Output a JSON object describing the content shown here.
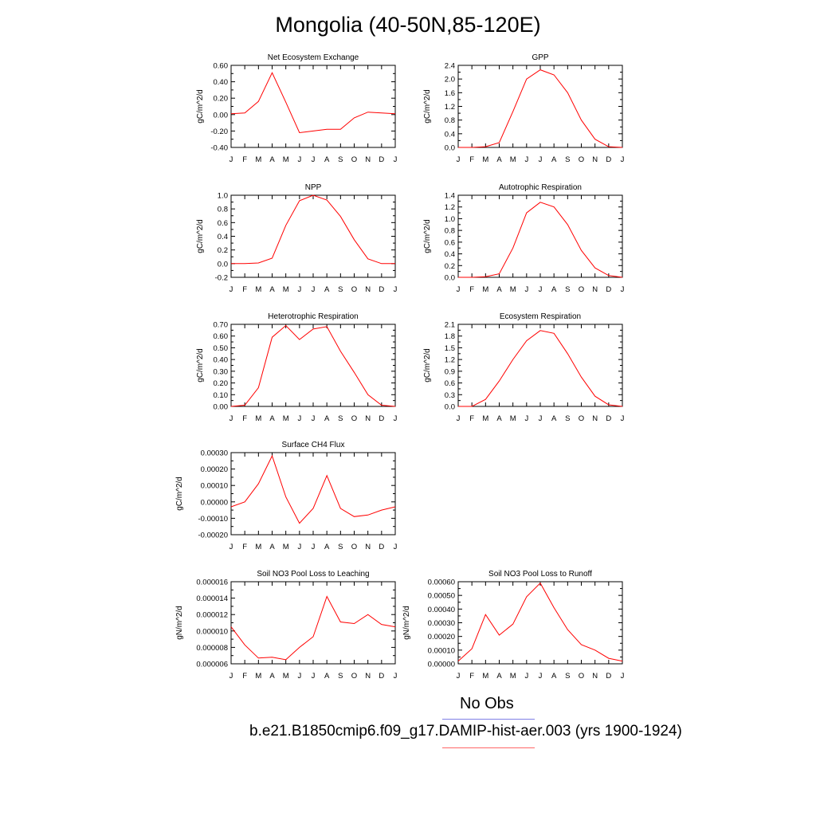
{
  "page": {
    "title": "Mongolia (40-50N,85-120E)",
    "legend": {
      "obs_label": "No Obs",
      "obs_color": "#7f7fe6",
      "model_label": "b.e21.B1850cmip6.f09_g17.DAMIP-hist-aer.003 (yrs 1900-1924)",
      "model_color": "#ff0000"
    }
  },
  "chart_data": [
    {
      "id": "nee",
      "type": "line",
      "title": "Net Ecosystem Exchange",
      "ylabel": "gC/m^2/d",
      "x": [
        "J",
        "F",
        "M",
        "A",
        "M",
        "J",
        "J",
        "A",
        "S",
        "O",
        "N",
        "D",
        "J"
      ],
      "yticks": [
        "0.60",
        "0.40",
        "0.20",
        "0.00",
        "-0.20",
        "-0.40"
      ],
      "ylim": [
        -0.4,
        0.6
      ],
      "series": [
        {
          "values": [
            0.01,
            0.02,
            0.16,
            0.51,
            0.15,
            -0.22,
            -0.2,
            -0.18,
            -0.18,
            -0.04,
            0.03,
            0.02,
            0.01
          ]
        }
      ]
    },
    {
      "id": "gpp",
      "type": "line",
      "title": "GPP",
      "ylabel": "gC/m^2/d",
      "x": [
        "J",
        "F",
        "M",
        "A",
        "M",
        "J",
        "J",
        "A",
        "S",
        "O",
        "N",
        "D",
        "J"
      ],
      "yticks": [
        "2.4",
        "2.0",
        "1.6",
        "1.2",
        "0.8",
        "0.4",
        "0.0"
      ],
      "ylim": [
        0,
        2.4
      ],
      "series": [
        {
          "values": [
            0.0,
            0.0,
            0.02,
            0.14,
            1.05,
            2.0,
            2.27,
            2.12,
            1.6,
            0.8,
            0.24,
            0.02,
            0.0
          ]
        }
      ]
    },
    {
      "id": "npp",
      "type": "line",
      "title": "NPP",
      "ylabel": "gC/m^2/d",
      "x": [
        "J",
        "F",
        "M",
        "A",
        "M",
        "J",
        "J",
        "A",
        "S",
        "O",
        "N",
        "D",
        "J"
      ],
      "yticks": [
        "1.0",
        "0.8",
        "0.6",
        "0.4",
        "0.2",
        "0.0",
        "-0.2"
      ],
      "ylim": [
        -0.2,
        1.0
      ],
      "series": [
        {
          "values": [
            0.0,
            0.0,
            0.01,
            0.08,
            0.56,
            0.92,
            1.0,
            0.93,
            0.69,
            0.35,
            0.07,
            0.0,
            0.0
          ]
        }
      ]
    },
    {
      "id": "ar",
      "type": "line",
      "title": "Autotrophic Respiration",
      "ylabel": "gC/m^2/d",
      "x": [
        "J",
        "F",
        "M",
        "A",
        "M",
        "J",
        "J",
        "A",
        "S",
        "O",
        "N",
        "D",
        "J"
      ],
      "yticks": [
        "1.4",
        "1.2",
        "1.0",
        "0.8",
        "0.6",
        "0.4",
        "0.2",
        "0.0"
      ],
      "ylim": [
        0,
        1.4
      ],
      "series": [
        {
          "values": [
            0.0,
            0.0,
            0.01,
            0.06,
            0.5,
            1.1,
            1.28,
            1.2,
            0.9,
            0.46,
            0.16,
            0.03,
            0.0
          ]
        }
      ]
    },
    {
      "id": "hr",
      "type": "line",
      "title": "Heterotrophic Respiration",
      "ylabel": "gC/m^2/d",
      "x": [
        "J",
        "F",
        "M",
        "A",
        "M",
        "J",
        "J",
        "A",
        "S",
        "O",
        "N",
        "D",
        "J"
      ],
      "yticks": [
        "0.70",
        "0.60",
        "0.50",
        "0.40",
        "0.30",
        "0.20",
        "0.10",
        "0.00"
      ],
      "ylim": [
        0,
        0.7
      ],
      "series": [
        {
          "values": [
            0.0,
            0.01,
            0.16,
            0.59,
            0.69,
            0.57,
            0.66,
            0.68,
            0.47,
            0.29,
            0.1,
            0.01,
            0.0
          ]
        }
      ]
    },
    {
      "id": "er",
      "type": "line",
      "title": "Ecosystem Respiration",
      "ylabel": "gC/m^2/d",
      "x": [
        "J",
        "F",
        "M",
        "A",
        "M",
        "J",
        "J",
        "A",
        "S",
        "O",
        "N",
        "D",
        "J"
      ],
      "yticks": [
        "2.1",
        "1.8",
        "1.5",
        "1.2",
        "0.9",
        "0.6",
        "0.3",
        "0.0"
      ],
      "ylim": [
        0,
        2.1
      ],
      "series": [
        {
          "values": [
            0.0,
            0.0,
            0.18,
            0.65,
            1.2,
            1.68,
            1.94,
            1.87,
            1.35,
            0.75,
            0.26,
            0.04,
            0.0
          ]
        }
      ]
    },
    {
      "id": "ch4",
      "type": "line",
      "title": "Surface CH4 Flux",
      "ylabel": "gC/m^2/d",
      "x": [
        "J",
        "F",
        "M",
        "A",
        "M",
        "J",
        "J",
        "A",
        "S",
        "O",
        "N",
        "D",
        "J"
      ],
      "yticks": [
        "0.00030",
        "0.00020",
        "0.00010",
        "0.00000",
        "-0.00010",
        "-0.00020"
      ],
      "ylim": [
        -0.0002,
        0.0003
      ],
      "series": [
        {
          "values": [
            -3e-05,
            0.0,
            0.00011,
            0.00028,
            3e-05,
            -0.00013,
            -4e-05,
            0.00016,
            -4e-05,
            -9e-05,
            -8e-05,
            -5e-05,
            -3e-05
          ]
        }
      ]
    },
    {
      "id": "leach",
      "type": "line",
      "title": "Soil NO3 Pool Loss to Leaching",
      "ylabel": "gN/m^2/d",
      "x": [
        "J",
        "F",
        "M",
        "A",
        "M",
        "J",
        "J",
        "A",
        "S",
        "O",
        "N",
        "D",
        "J"
      ],
      "yticks": [
        "0.000016",
        "0.000014",
        "0.000012",
        "0.000010",
        "0.000008",
        "0.000006"
      ],
      "ylim": [
        6e-06,
        1.6e-05
      ],
      "series": [
        {
          "values": [
            1.05e-05,
            8.3e-06,
            6.7e-06,
            6.8e-06,
            6.5e-06,
            8e-06,
            9.3e-06,
            1.42e-05,
            1.11e-05,
            1.09e-05,
            1.2e-05,
            1.08e-05,
            1.05e-05
          ]
        }
      ]
    },
    {
      "id": "runoff",
      "type": "line",
      "title": "Soil NO3 Pool Loss to Runoff",
      "ylabel": "gN/m^2/d",
      "x": [
        "J",
        "F",
        "M",
        "A",
        "M",
        "J",
        "J",
        "A",
        "S",
        "O",
        "N",
        "D",
        "J"
      ],
      "yticks": [
        "0.00060",
        "0.00050",
        "0.00040",
        "0.00030",
        "0.00020",
        "0.00010",
        "0.00000"
      ],
      "ylim": [
        0,
        0.0006
      ],
      "series": [
        {
          "values": [
            2e-05,
            0.00011,
            0.00036,
            0.00021,
            0.00029,
            0.00049,
            0.00059,
            0.00041,
            0.00025,
            0.00014,
            0.0001,
            4e-05,
            2e-05
          ]
        }
      ]
    }
  ]
}
